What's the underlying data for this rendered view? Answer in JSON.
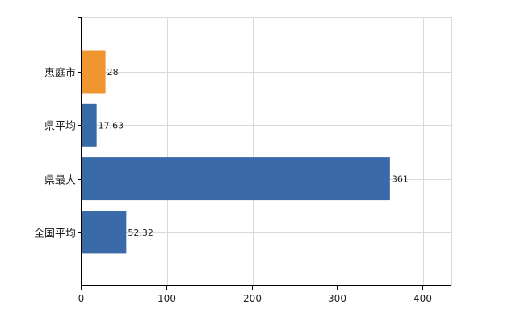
{
  "chart_data": {
    "type": "bar",
    "orientation": "horizontal",
    "title": "",
    "xlabel": "",
    "ylabel": "",
    "categories": [
      "恵庭市",
      "県平均",
      "県最大",
      "全国平均"
    ],
    "values": [
      28,
      17.63,
      361,
      52.32
    ],
    "value_labels": [
      "28",
      "17.63",
      "361",
      "52.32"
    ],
    "bar_colors": [
      "#f0962f",
      "#3a6aa8",
      "#3a6aa8",
      "#3a6aa8"
    ],
    "xlim": [
      0,
      433
    ],
    "x_ticks": [
      0,
      100,
      200,
      300,
      400
    ],
    "x_tick_labels": [
      "0",
      "100",
      "200",
      "300",
      "400"
    ],
    "grid": true,
    "legend": "none"
  }
}
